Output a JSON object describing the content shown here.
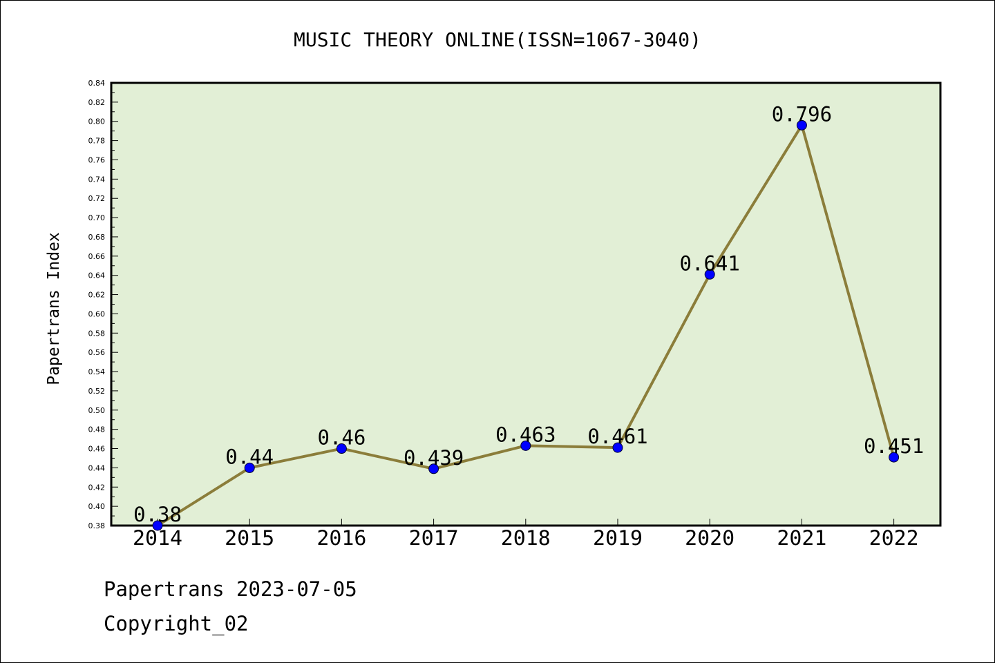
{
  "chart_data": {
    "type": "line",
    "title": "MUSIC THEORY ONLINE(ISSN=1067-3040)",
    "xlabel": "",
    "ylabel": "Papertrans Index",
    "categories": [
      "2014",
      "2015",
      "2016",
      "2017",
      "2018",
      "2019",
      "2020",
      "2021",
      "2022"
    ],
    "values": [
      0.38,
      0.44,
      0.46,
      0.439,
      0.463,
      0.461,
      0.641,
      0.796,
      0.451
    ],
    "value_labels": [
      "0.38",
      "0.44",
      "0.46",
      "0.439",
      "0.463",
      "0.461",
      "0.641",
      "0.796",
      "0.451"
    ],
    "ylim": [
      0.38,
      0.84
    ],
    "y_ticks": [
      "0.38",
      "0.40",
      "0.42",
      "0.44",
      "0.46",
      "0.48",
      "0.50",
      "0.52",
      "0.54",
      "0.56",
      "0.58",
      "0.60",
      "0.62",
      "0.64",
      "0.66",
      "0.68",
      "0.70",
      "0.72",
      "0.74",
      "0.76",
      "0.78",
      "0.80",
      "0.82",
      "0.84"
    ],
    "grid": false,
    "legend": "none",
    "colors": {
      "plot_background": "#e2efd6",
      "line": "#8b7d3a",
      "marker": "#0000ff",
      "axis": "#000000"
    }
  },
  "footer": {
    "line1": "Papertrans 2023-07-05",
    "line2": "Copyright_02"
  }
}
